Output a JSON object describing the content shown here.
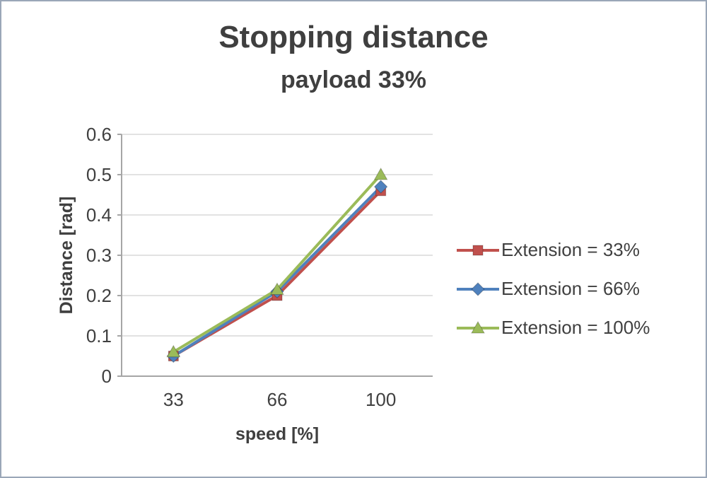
{
  "title": "Stopping distance",
  "subtitle": "payload 33%",
  "chart_data": {
    "type": "line",
    "title": "Stopping distance",
    "subtitle": "payload 33%",
    "xlabel": "speed [%]",
    "ylabel": "Distance [rad]",
    "categories": [
      "33",
      "66",
      "100"
    ],
    "series": [
      {
        "name": "Extension = 33%",
        "color": "#c0504d",
        "marker": "square",
        "values": [
          0.05,
          0.2,
          0.46
        ]
      },
      {
        "name": "Extension = 66%",
        "color": "#4f81bd",
        "marker": "diamond",
        "values": [
          0.05,
          0.21,
          0.47
        ]
      },
      {
        "name": "Extension = 100%",
        "color": "#9bbb59",
        "marker": "triangle",
        "values": [
          0.06,
          0.215,
          0.5
        ]
      }
    ],
    "ylim": [
      0,
      0.6
    ],
    "ytick_step": 0.1,
    "grid": true,
    "legend_position": "right",
    "colors": {
      "grid": "#d9d9d9",
      "axis": "#a6a6a6",
      "tick_label": "#404040",
      "axis_title": "#3f3f3f"
    }
  }
}
